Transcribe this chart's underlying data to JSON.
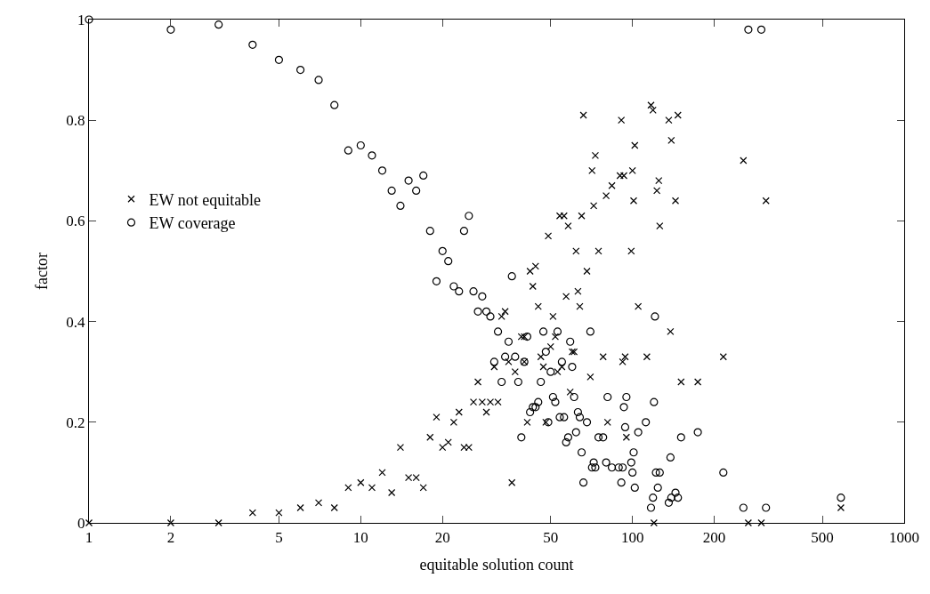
{
  "chart_data": {
    "type": "scatter",
    "xlabel": "equitable solution count",
    "ylabel": "factor",
    "log": "x",
    "xlim": [
      1,
      1000
    ],
    "xticks": [
      1,
      2,
      5,
      10,
      20,
      50,
      100,
      200,
      500,
      1000
    ],
    "ylim": [
      0,
      1
    ],
    "yticks": [
      0,
      0.2,
      0.4,
      0.6,
      0.8,
      1
    ],
    "legend": "left",
    "series": [
      {
        "name": "EW not equitable",
        "color": "#000000",
        "marker": "cross",
        "x": [
          1,
          2,
          3,
          4,
          5,
          6,
          7,
          8,
          9,
          10,
          11,
          12,
          13,
          14,
          15,
          16,
          17,
          18,
          19,
          20,
          21,
          22,
          23,
          24,
          25,
          26,
          27,
          28,
          29,
          30,
          31,
          32,
          33,
          34,
          35,
          36,
          37,
          39,
          40,
          40,
          41,
          42,
          43,
          44,
          45,
          46,
          47,
          48,
          49,
          50,
          51,
          52,
          53,
          54,
          55,
          56,
          57,
          58,
          59,
          60,
          61,
          62,
          63,
          64,
          65,
          66,
          68,
          70,
          71,
          72,
          73,
          75,
          78,
          80,
          81,
          84,
          90,
          91,
          92,
          93,
          94,
          95,
          99,
          100,
          101,
          102,
          105,
          113,
          117,
          119,
          120,
          123,
          125,
          126,
          136,
          138,
          139,
          144,
          147,
          151,
          174,
          216,
          256,
          267,
          298,
          310,
          585
        ],
        "values": [
          0,
          0,
          0,
          0.02,
          0.02,
          0.03,
          0.04,
          0.03,
          0.07,
          0.08,
          0.07,
          0.1,
          0.06,
          0.15,
          0.09,
          0.09,
          0.07,
          0.17,
          0.21,
          0.15,
          0.16,
          0.2,
          0.22,
          0.15,
          0.15,
          0.24,
          0.28,
          0.24,
          0.22,
          0.24,
          0.31,
          0.24,
          0.41,
          0.42,
          0.32,
          0.08,
          0.3,
          0.37,
          0.37,
          0.32,
          0.2,
          0.5,
          0.47,
          0.51,
          0.43,
          0.33,
          0.31,
          0.2,
          0.57,
          0.35,
          0.41,
          0.37,
          0.3,
          0.61,
          0.31,
          0.61,
          0.45,
          0.59,
          0.26,
          0.34,
          0.34,
          0.54,
          0.46,
          0.43,
          0.61,
          0.81,
          0.5,
          0.29,
          0.7,
          0.63,
          0.73,
          0.54,
          0.33,
          0.65,
          0.2,
          0.67,
          0.69,
          0.8,
          0.32,
          0.69,
          0.33,
          0.17,
          0.54,
          0.7,
          0.64,
          0.75,
          0.43,
          0.33,
          0.83,
          0.82,
          0,
          0.66,
          0.68,
          0.59,
          0.8,
          0.38,
          0.76,
          0.64,
          0.81,
          0.28,
          0.28,
          0.33,
          0.72,
          0,
          0,
          0.64,
          0.03
        ]
      },
      {
        "name": "EW coverage",
        "color": "#000000",
        "marker": "circle",
        "x": [
          1,
          2,
          3,
          4,
          5,
          6,
          7,
          8,
          9,
          10,
          11,
          12,
          13,
          14,
          15,
          16,
          17,
          18,
          19,
          20,
          21,
          22,
          23,
          24,
          25,
          26,
          27,
          28,
          29,
          30,
          31,
          32,
          33,
          34,
          35,
          36,
          37,
          38,
          39,
          40,
          41,
          42,
          43,
          44,
          45,
          46,
          47,
          48,
          49,
          50,
          51,
          52,
          53,
          54,
          55,
          56,
          57,
          58,
          59,
          60,
          61,
          62,
          63,
          64,
          65,
          66,
          68,
          70,
          71,
          72,
          73,
          75,
          78,
          80,
          81,
          84,
          89,
          91,
          92,
          93,
          94,
          95,
          99,
          100,
          101,
          102,
          105,
          112,
          117,
          119,
          120,
          121,
          122,
          124,
          126,
          136,
          138,
          139,
          144,
          147,
          151,
          174,
          216,
          256,
          267,
          298,
          310,
          585
        ],
        "values": [
          1,
          0.98,
          0.99,
          0.95,
          0.92,
          0.9,
          0.88,
          0.83,
          0.74,
          0.75,
          0.73,
          0.7,
          0.66,
          0.63,
          0.68,
          0.66,
          0.69,
          0.58,
          0.48,
          0.54,
          0.52,
          0.47,
          0.46,
          0.58,
          0.61,
          0.46,
          0.42,
          0.45,
          0.42,
          0.41,
          0.32,
          0.38,
          0.28,
          0.33,
          0.36,
          0.49,
          0.33,
          0.28,
          0.17,
          0.32,
          0.37,
          0.22,
          0.23,
          0.23,
          0.24,
          0.28,
          0.38,
          0.34,
          0.2,
          0.3,
          0.25,
          0.24,
          0.38,
          0.21,
          0.32,
          0.21,
          0.16,
          0.17,
          0.36,
          0.31,
          0.25,
          0.18,
          0.22,
          0.21,
          0.14,
          0.08,
          0.2,
          0.38,
          0.11,
          0.12,
          0.11,
          0.17,
          0.17,
          0.12,
          0.25,
          0.11,
          0.11,
          0.08,
          0.11,
          0.23,
          0.19,
          0.25,
          0.12,
          0.1,
          0.14,
          0.07,
          0.18,
          0.2,
          0.03,
          0.05,
          0.24,
          0.41,
          0.1,
          0.07,
          0.1,
          0.04,
          0.13,
          0.05,
          0.06,
          0.05,
          0.17,
          0.18,
          0.1,
          0.03,
          0.98,
          0.98,
          0.03,
          0.05
        ]
      }
    ]
  }
}
